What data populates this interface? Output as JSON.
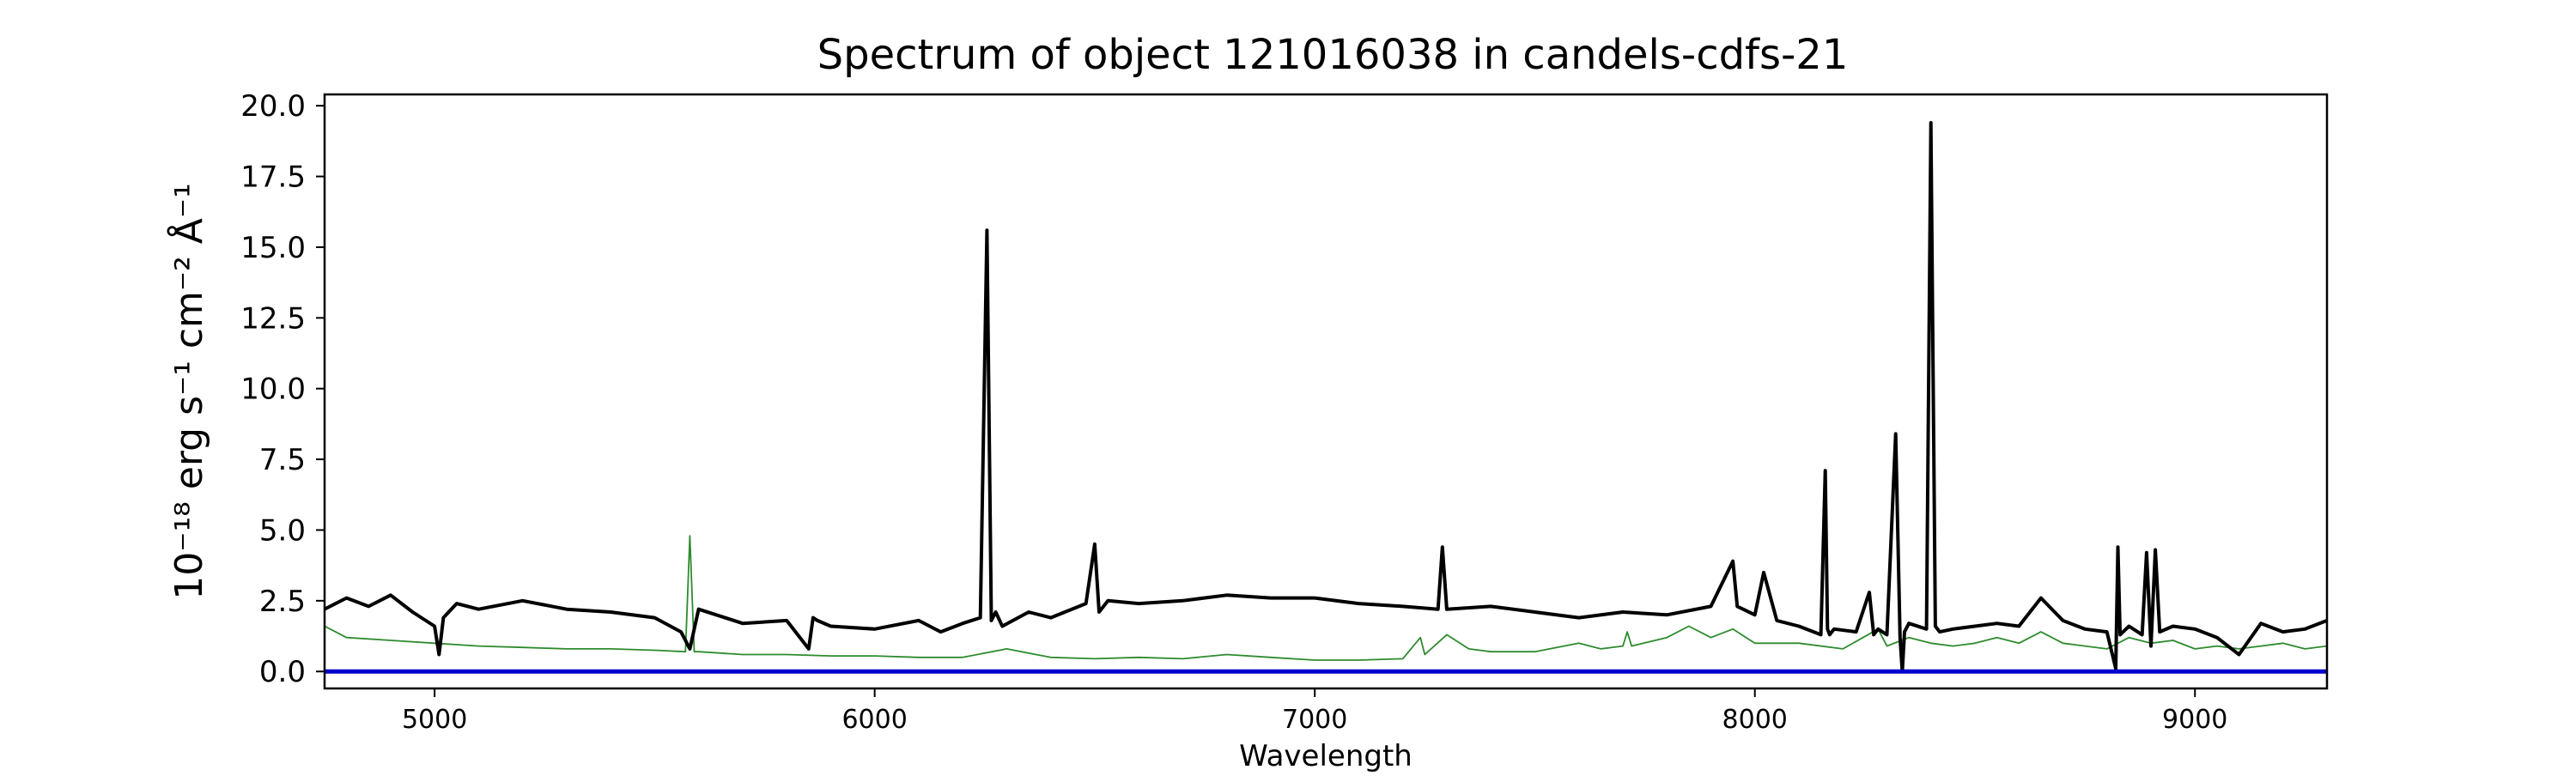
{
  "chart_data": {
    "type": "line",
    "title": "Spectrum of object 121016038 in candels-cdfs-21",
    "xlabel": "Wavelength",
    "ylabel": "10⁻¹⁸ erg s⁻¹ cm⁻² Å⁻¹",
    "xlim": [
      4750,
      9300
    ],
    "ylim": [
      -0.6,
      20.4
    ],
    "x_ticks": [
      5000,
      6000,
      7000,
      8000,
      9000
    ],
    "y_ticks": [
      0.0,
      2.5,
      5.0,
      7.5,
      10.0,
      12.5,
      15.0,
      17.5,
      20.0
    ],
    "y_tick_labels": [
      "0.0",
      "2.5",
      "5.0",
      "7.5",
      "10.0",
      "12.5",
      "15.0",
      "17.5",
      "20.0"
    ],
    "colors": {
      "flux": "#000000",
      "noise": "#2e8b2e",
      "zero": "#0000cc"
    },
    "series": [
      {
        "role": "flux",
        "x": [
          4750,
          4800,
          4850,
          4900,
          4950,
          5000,
          5010,
          5020,
          5050,
          5100,
          5200,
          5300,
          5400,
          5500,
          5560,
          5580,
          5600,
          5700,
          5800,
          5850,
          5860,
          5870,
          5900,
          6000,
          6100,
          6150,
          6200,
          6240,
          6255,
          6265,
          6275,
          6290,
          6350,
          6400,
          6480,
          6500,
          6510,
          6530,
          6600,
          6700,
          6800,
          6900,
          7000,
          7100,
          7200,
          7280,
          7290,
          7300,
          7400,
          7500,
          7600,
          7700,
          7800,
          7900,
          7950,
          7960,
          8000,
          8020,
          8050,
          8100,
          8150,
          8160,
          8165,
          8170,
          8180,
          8230,
          8260,
          8270,
          8280,
          8300,
          8320,
          8330,
          8335,
          8340,
          8350,
          8390,
          8400,
          8410,
          8420,
          8450,
          8500,
          8550,
          8600,
          8650,
          8700,
          8750,
          8800,
          8820,
          8825,
          8830,
          8850,
          8880,
          8890,
          8900,
          8910,
          8920,
          8950,
          9000,
          9050,
          9100,
          9150,
          9200,
          9250,
          9300
        ],
        "y": [
          2.2,
          2.6,
          2.3,
          2.7,
          2.1,
          1.6,
          0.6,
          1.9,
          2.4,
          2.2,
          2.5,
          2.2,
          2.1,
          1.9,
          1.4,
          0.8,
          2.2,
          1.7,
          1.8,
          0.8,
          1.9,
          1.8,
          1.6,
          1.5,
          1.8,
          1.4,
          1.7,
          1.9,
          15.6,
          1.8,
          2.1,
          1.6,
          2.1,
          1.9,
          2.4,
          4.5,
          2.1,
          2.5,
          2.4,
          2.5,
          2.7,
          2.6,
          2.6,
          2.4,
          2.3,
          2.2,
          4.4,
          2.2,
          2.3,
          2.1,
          1.9,
          2.1,
          2.0,
          2.3,
          3.9,
          2.3,
          2.0,
          3.5,
          1.8,
          1.6,
          1.3,
          7.1,
          1.5,
          1.3,
          1.5,
          1.4,
          2.8,
          1.3,
          1.5,
          1.3,
          8.4,
          1.2,
          0.0,
          1.4,
          1.7,
          1.5,
          19.4,
          1.6,
          1.4,
          1.5,
          1.6,
          1.7,
          1.6,
          2.6,
          1.8,
          1.5,
          1.4,
          0.1,
          4.4,
          1.3,
          1.6,
          1.3,
          4.2,
          0.9,
          4.3,
          1.4,
          1.6,
          1.5,
          1.2,
          0.6,
          1.7,
          1.4,
          1.5,
          1.8
        ]
      },
      {
        "role": "noise",
        "x": [
          4750,
          4800,
          4900,
          5000,
          5100,
          5200,
          5300,
          5400,
          5500,
          5570,
          5580,
          5590,
          5600,
          5700,
          5800,
          5900,
          6000,
          6100,
          6200,
          6300,
          6400,
          6500,
          6600,
          6700,
          6800,
          6900,
          7000,
          7100,
          7200,
          7240,
          7250,
          7300,
          7350,
          7400,
          7500,
          7600,
          7650,
          7700,
          7710,
          7720,
          7800,
          7850,
          7900,
          7950,
          8000,
          8100,
          8200,
          8280,
          8300,
          8350,
          8400,
          8450,
          8500,
          8550,
          8600,
          8650,
          8700,
          8750,
          8800,
          8850,
          8900,
          8950,
          9000,
          9050,
          9100,
          9150,
          9200,
          9250,
          9300
        ],
        "y": [
          1.6,
          1.2,
          1.1,
          1.0,
          0.9,
          0.85,
          0.8,
          0.8,
          0.75,
          0.7,
          4.8,
          0.7,
          0.7,
          0.6,
          0.6,
          0.55,
          0.55,
          0.5,
          0.5,
          0.8,
          0.5,
          0.45,
          0.5,
          0.45,
          0.6,
          0.5,
          0.4,
          0.4,
          0.45,
          1.2,
          0.6,
          1.3,
          0.8,
          0.7,
          0.7,
          1.0,
          0.8,
          0.9,
          1.4,
          0.9,
          1.2,
          1.6,
          1.2,
          1.5,
          1.0,
          1.0,
          0.8,
          1.5,
          0.9,
          1.2,
          1.0,
          0.9,
          1.0,
          1.2,
          1.0,
          1.4,
          1.0,
          0.9,
          0.8,
          1.2,
          1.0,
          1.1,
          0.8,
          0.9,
          0.8,
          0.9,
          1.0,
          0.8,
          0.9
        ]
      },
      {
        "role": "zero",
        "x": [
          4750,
          9300
        ],
        "y": [
          0.0,
          0.0
        ]
      }
    ]
  }
}
